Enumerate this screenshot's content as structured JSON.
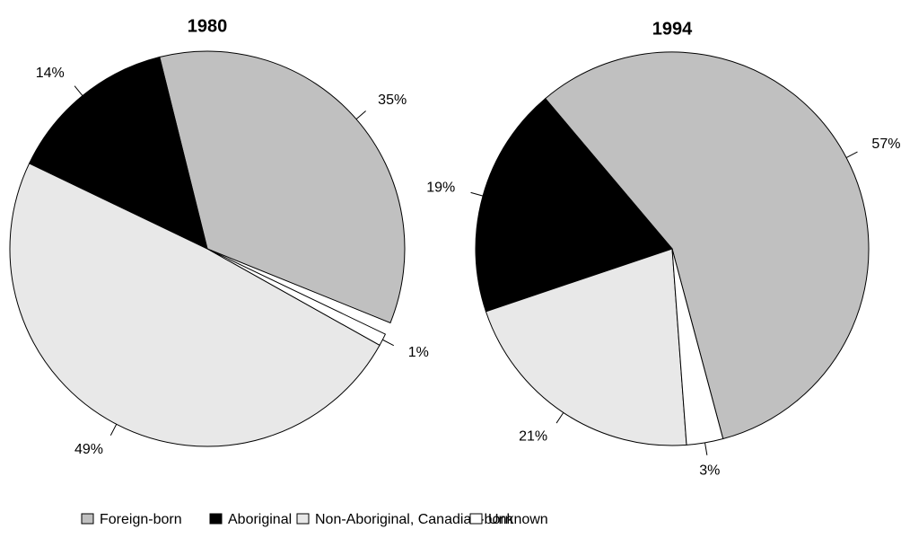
{
  "chart_data": [
    {
      "type": "pie",
      "title": "1980",
      "values": [
        35,
        14,
        49,
        1
      ],
      "value_labels": [
        "35%",
        "14%",
        "49%",
        "1%"
      ]
    },
    {
      "type": "pie",
      "title": "1994",
      "values": [
        57,
        19,
        21,
        3
      ],
      "value_labels": [
        "57%",
        "19%",
        "21%",
        "3%"
      ]
    }
  ],
  "legend": {
    "labels": [
      "Foreign-born",
      "Aboriginal",
      "Non-Aboriginal, Canadian-born",
      "Unknown"
    ],
    "colors": [
      "#c0c0c0",
      "#000000",
      "#e8e8e8",
      "#ffffff"
    ]
  }
}
